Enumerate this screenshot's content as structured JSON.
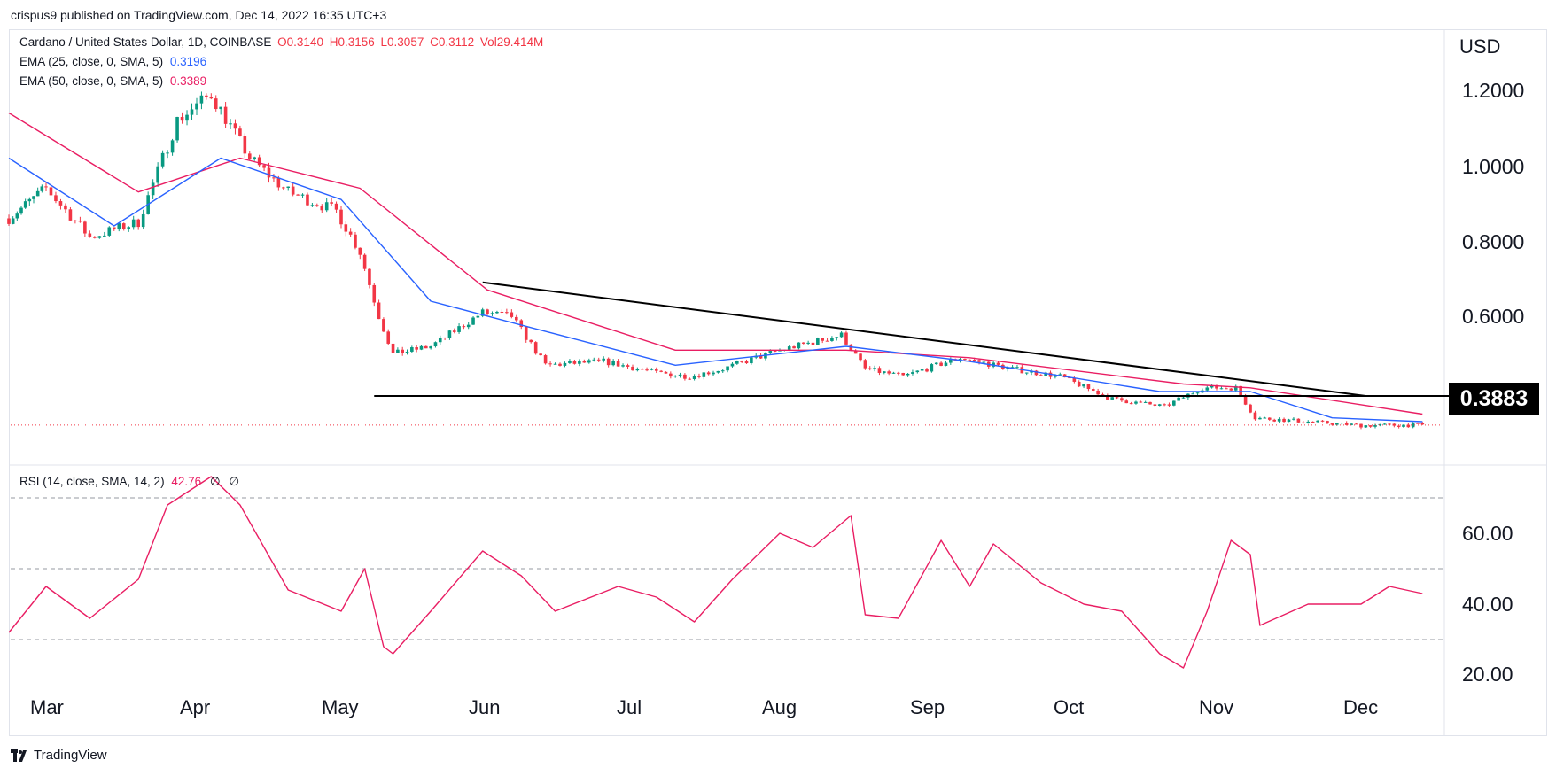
{
  "header": {
    "publisher_line": "crispus9 published on TradingView.com, Dec 14, 2022 16:35 UTC+3"
  },
  "legend": {
    "symbol": "Cardano / United States Dollar, 1D, COINBASE",
    "open": "O0.3140",
    "high": "H0.3156",
    "low": "L0.3057",
    "close": "C0.3112",
    "volume": "Vol29.414M",
    "ema25_label": "EMA (25, close, 0, SMA, 5)",
    "ema25_value": "0.3196",
    "ema50_label": "EMA (50, close, 0, SMA, 5)",
    "ema50_value": "0.3389"
  },
  "rsi_legend": {
    "label": "RSI (14, close, SMA, 14, 2)",
    "value": "42.76",
    "extra1": "∅",
    "extra2": "∅"
  },
  "footer": {
    "brand": "TradingView"
  },
  "colors": {
    "up": "#089981",
    "down": "#f23645",
    "ema25": "#2962ff",
    "ema50": "#e91e63",
    "rsi": "#e91e63"
  },
  "chart_data": [
    {
      "type": "line",
      "currency": "USD",
      "y_tick_labels": [
        "1.2000",
        "1.0000",
        "0.8000",
        "0.6000"
      ],
      "y_tick_values": [
        1.2,
        1.0,
        0.8,
        0.6
      ],
      "x_tick_labels": [
        "Mar",
        "Apr",
        "May",
        "Jun",
        "Jul",
        "Aug",
        "Sep",
        "Oct",
        "Nov",
        "Dec"
      ],
      "price_tag": "0.3883",
      "series": [
        {
          "name": "ADAUSD close",
          "x": [
            "2022-02-20",
            "2022-03-01",
            "2022-03-10",
            "2022-03-20",
            "2022-03-28",
            "2022-04-04",
            "2022-04-12",
            "2022-04-20",
            "2022-04-30",
            "2022-05-05",
            "2022-05-09",
            "2022-05-12",
            "2022-05-20",
            "2022-05-31",
            "2022-06-06",
            "2022-06-13",
            "2022-06-25",
            "2022-07-06",
            "2022-07-13",
            "2022-07-20",
            "2022-08-01",
            "2022-08-14",
            "2022-08-19",
            "2022-08-27",
            "2022-09-08",
            "2022-09-19",
            "2022-09-29",
            "2022-10-10",
            "2022-10-21",
            "2022-10-29",
            "2022-11-05",
            "2022-11-09",
            "2022-11-20",
            "2022-12-01",
            "2022-12-14"
          ],
          "values": [
            0.86,
            0.94,
            0.81,
            0.85,
            1.12,
            1.19,
            1.02,
            0.93,
            0.88,
            0.77,
            0.6,
            0.5,
            0.52,
            0.61,
            0.6,
            0.47,
            0.48,
            0.45,
            0.44,
            0.46,
            0.51,
            0.55,
            0.46,
            0.44,
            0.49,
            0.46,
            0.44,
            0.38,
            0.36,
            0.41,
            0.41,
            0.33,
            0.32,
            0.31,
            0.311
          ]
        },
        {
          "name": "EMA 25",
          "x": [
            "2022-02-20",
            "2022-03-15",
            "2022-04-06",
            "2022-05-01",
            "2022-05-20",
            "2022-06-10",
            "2022-07-10",
            "2022-08-15",
            "2022-09-10",
            "2022-10-20",
            "2022-11-08",
            "2022-11-25",
            "2022-12-14"
          ],
          "values": [
            1.02,
            0.84,
            1.02,
            0.91,
            0.64,
            0.57,
            0.47,
            0.52,
            0.48,
            0.4,
            0.4,
            0.33,
            0.32
          ]
        },
        {
          "name": "EMA 50",
          "x": [
            "2022-02-20",
            "2022-03-20",
            "2022-04-10",
            "2022-05-05",
            "2022-06-01",
            "2022-07-10",
            "2022-08-15",
            "2022-09-10",
            "2022-10-25",
            "2022-11-08",
            "2022-12-14"
          ],
          "values": [
            1.14,
            0.93,
            1.02,
            0.94,
            0.67,
            0.51,
            0.51,
            0.49,
            0.42,
            0.41,
            0.34
          ]
        }
      ]
    },
    {
      "type": "line",
      "y_tick_labels": [
        "60.00",
        "40.00",
        "20.00"
      ],
      "y_tick_values": [
        60,
        40,
        20
      ],
      "series": [
        {
          "name": "RSI",
          "x": [
            "2022-02-20",
            "2022-03-01",
            "2022-03-10",
            "2022-03-20",
            "2022-03-26",
            "2022-04-04",
            "2022-04-10",
            "2022-04-20",
            "2022-05-01",
            "2022-05-06",
            "2022-05-10",
            "2022-05-12",
            "2022-05-20",
            "2022-05-31",
            "2022-06-08",
            "2022-06-15",
            "2022-06-28",
            "2022-07-06",
            "2022-07-14",
            "2022-07-22",
            "2022-08-01",
            "2022-08-08",
            "2022-08-16",
            "2022-08-19",
            "2022-08-26",
            "2022-09-04",
            "2022-09-10",
            "2022-09-15",
            "2022-09-25",
            "2022-10-04",
            "2022-10-12",
            "2022-10-20",
            "2022-10-25",
            "2022-10-30",
            "2022-11-04",
            "2022-11-08",
            "2022-11-10",
            "2022-11-20",
            "2022-12-01",
            "2022-12-07",
            "2022-12-14"
          ],
          "values": [
            32,
            45,
            36,
            47,
            68,
            76,
            68,
            44,
            38,
            50,
            28,
            26,
            38,
            55,
            48,
            38,
            45,
            42,
            35,
            47,
            60,
            56,
            65,
            37,
            36,
            58,
            45,
            57,
            46,
            40,
            38,
            26,
            22,
            38,
            58,
            54,
            34,
            40,
            40,
            45,
            43
          ]
        }
      ]
    }
  ]
}
